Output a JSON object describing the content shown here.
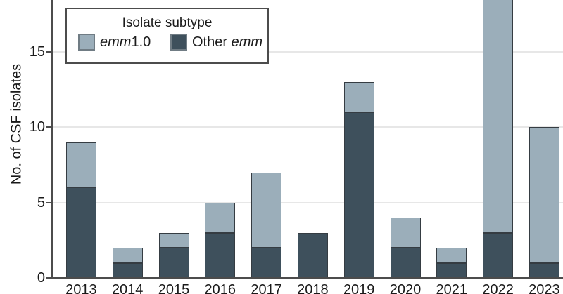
{
  "figure": {
    "ylabel": "No. of CSF isolates",
    "legend": {
      "title": "Isolate subtype",
      "entries": [
        {
          "id": "emm1.0",
          "color": "#9BAEBA",
          "parts": [
            {
              "italic": true,
              "text": "emm"
            },
            {
              "italic": false,
              "text": "1.0"
            }
          ]
        },
        {
          "id": "Other emm",
          "color": "#3E505C",
          "parts": [
            {
              "italic": false,
              "text": "Other "
            },
            {
              "italic": true,
              "text": "emm"
            }
          ]
        }
      ]
    }
  },
  "colors": {
    "emm1_0": "#9BAEBA",
    "other_emm": "#3E505C",
    "bar_border": "#353c42",
    "axis": "#4c4c4c",
    "gridline": "#e7e7e7",
    "text": "#1a1a1a"
  },
  "chart_data": {
    "type": "bar",
    "stacked": true,
    "title": "",
    "xlabel": "",
    "ylabel": "No. of CSF isolates",
    "categories": [
      "2013",
      "2014",
      "2015",
      "2016",
      "2017",
      "2018",
      "2019",
      "2020",
      "2021",
      "2022",
      "2023"
    ],
    "series": [
      {
        "name": "Other emm",
        "color": "#3E505C",
        "values": [
          6,
          1,
          2,
          3,
          2,
          3,
          11,
          2,
          1,
          3,
          1
        ]
      },
      {
        "name": "emm1.0",
        "color": "#9BAEBA",
        "values": [
          3,
          1,
          1,
          2,
          5,
          0,
          2,
          2,
          1,
          16,
          9
        ]
      }
    ],
    "stack_order_bottom_to_top": [
      "Other emm",
      "emm1.0"
    ],
    "visible_totals": [
      9,
      2,
      3,
      5,
      7,
      3,
      13,
      4,
      2,
      null,
      10
    ],
    "yticks": [
      0,
      5,
      10,
      15
    ],
    "ylim_visible": [
      0,
      18.5
    ],
    "grid": "horizontal",
    "legend_position": "inset-top-left",
    "truncated": {
      "category": "2022",
      "series": "emm1.0",
      "note": "2022 bar is cut off by the top edge of the image; only 3 dark units and the light segment up to the crop are visible"
    }
  }
}
